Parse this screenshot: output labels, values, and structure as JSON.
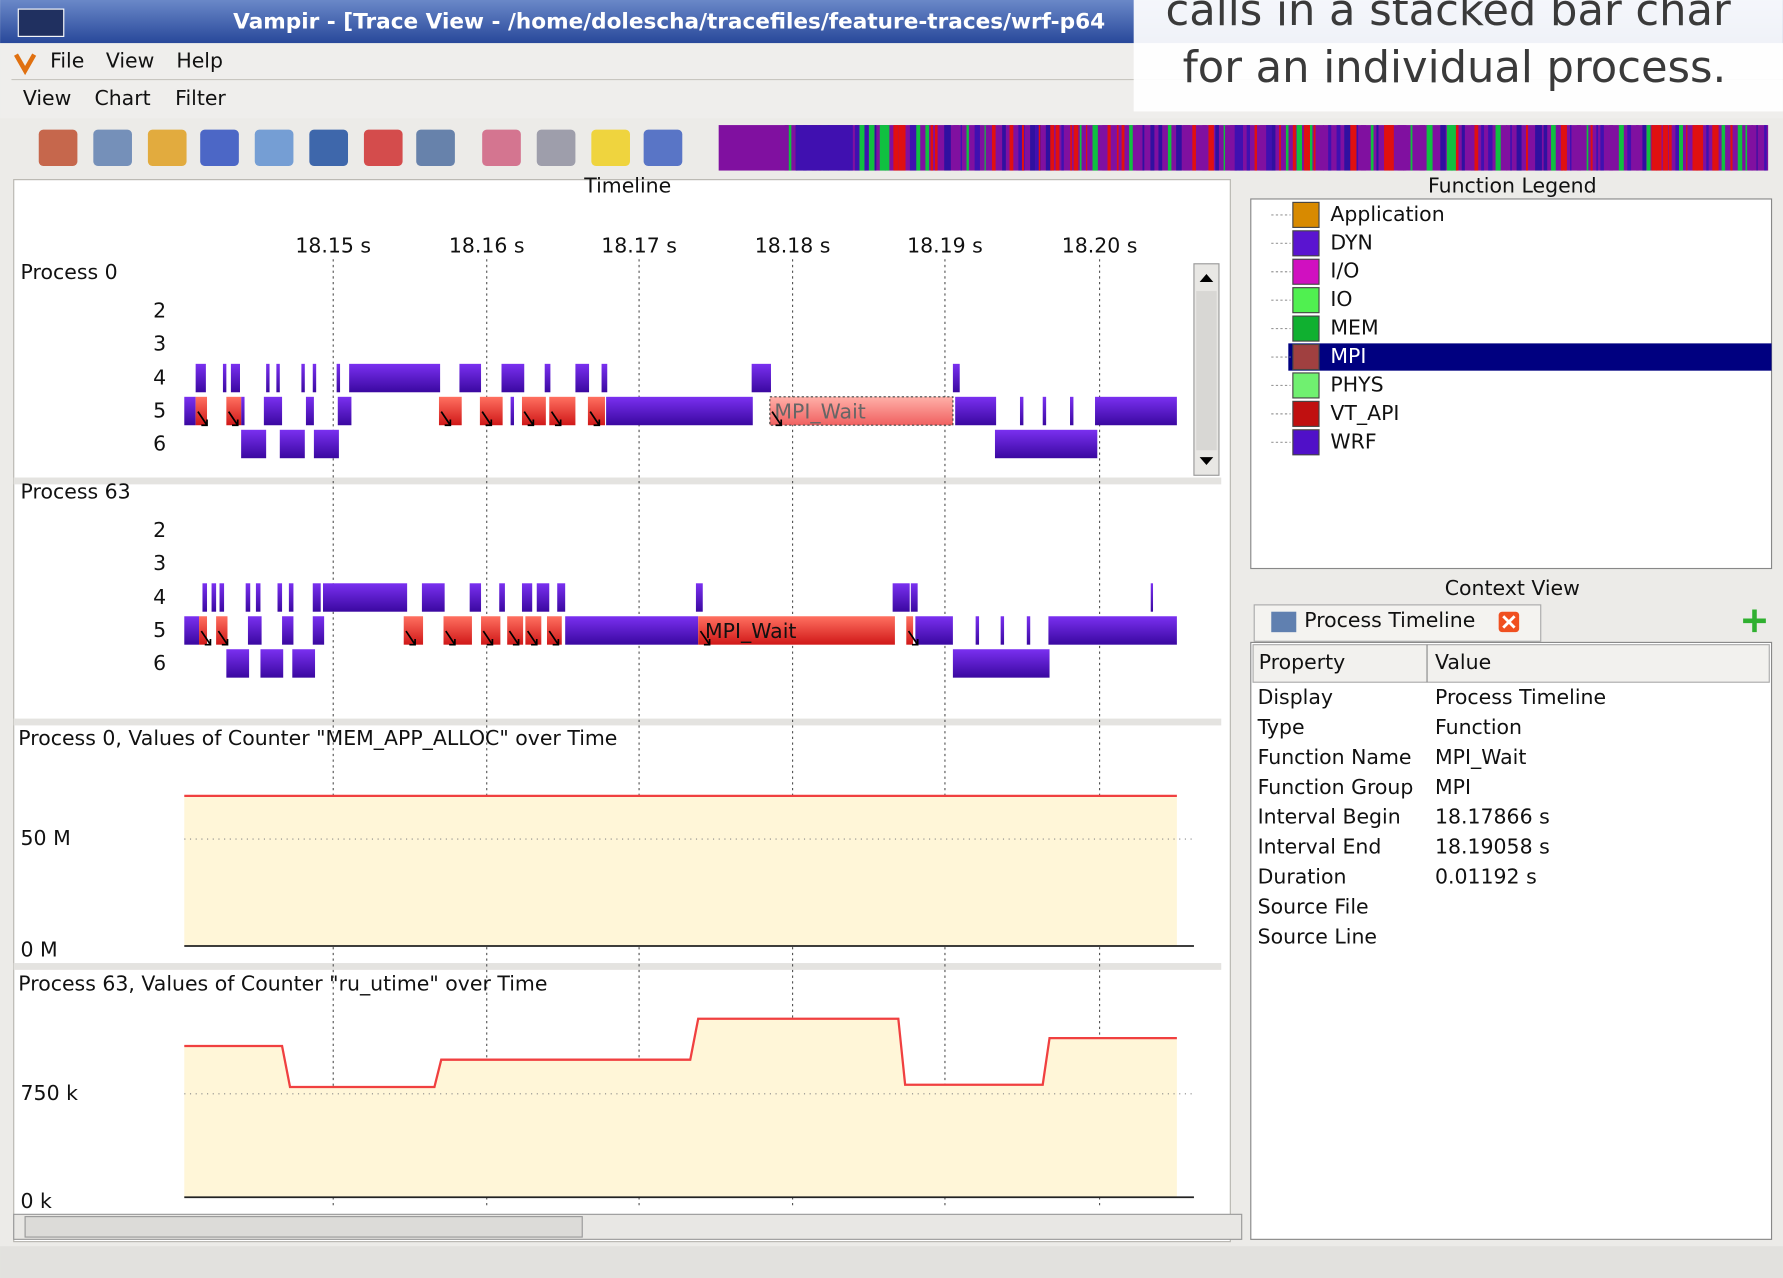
{
  "window": {
    "title": "Vampir - [Trace View - /home/dolescha/tracefiles/feature-traces/wrf-p64"
  },
  "menu_main": [
    "File",
    "View",
    "Help"
  ],
  "menu_sub": [
    "View",
    "Chart",
    "Filter"
  ],
  "caption": [
    "calls in a stacked bar char",
    "for an individual process."
  ],
  "timeline": {
    "title": "Timeline",
    "ticks": [
      "18.15 s",
      "18.16 s",
      "18.17 s",
      "18.18 s",
      "18.19 s",
      "18.20 s"
    ],
    "processes": [
      {
        "name": "Process 0",
        "levels": [
          "2",
          "3",
          "4",
          "5",
          "6"
        ],
        "label": "MPI_Wait"
      },
      {
        "name": "Process 63",
        "levels": [
          "2",
          "3",
          "4",
          "5",
          "6"
        ],
        "label": "MPI_Wait"
      }
    ]
  },
  "counters": [
    {
      "title": "Process 0, Values of Counter \"MEM_APP_ALLOC\" over Time",
      "labels": [
        "50 M",
        "0 M"
      ]
    },
    {
      "title": "Process 63, Values of Counter \"ru_utime\" over Time",
      "labels": [
        "750 k",
        "0 k"
      ]
    }
  ],
  "legend": {
    "title": "Function Legend",
    "items": [
      {
        "name": "Application",
        "color": "#d88a00"
      },
      {
        "name": "DYN",
        "color": "#5a14d0"
      },
      {
        "name": "I/O",
        "color": "#d010c0"
      },
      {
        "name": "IO",
        "color": "#50f050"
      },
      {
        "name": "MEM",
        "color": "#10b030"
      },
      {
        "name": "MPI",
        "color": "#a04040"
      },
      {
        "name": "PHYS",
        "color": "#70f070"
      },
      {
        "name": "VT_API",
        "color": "#c01010"
      },
      {
        "name": "WRF",
        "color": "#5010c8"
      }
    ]
  },
  "context": {
    "title": "Context View",
    "tab": "Process Timeline",
    "columns": [
      "Property",
      "Value"
    ],
    "rows": [
      [
        "Display",
        "Process Timeline"
      ],
      [
        "Type",
        "Function"
      ],
      [
        "Function Name",
        "MPI_Wait"
      ],
      [
        "Function Group",
        "MPI"
      ],
      [
        "Interval Begin",
        "18.17866 s"
      ],
      [
        "Interval End",
        "18.19058 s"
      ],
      [
        "Duration",
        "0.01192 s"
      ],
      [
        "Source File"
      ],
      [
        "Source Line"
      ]
    ]
  }
}
